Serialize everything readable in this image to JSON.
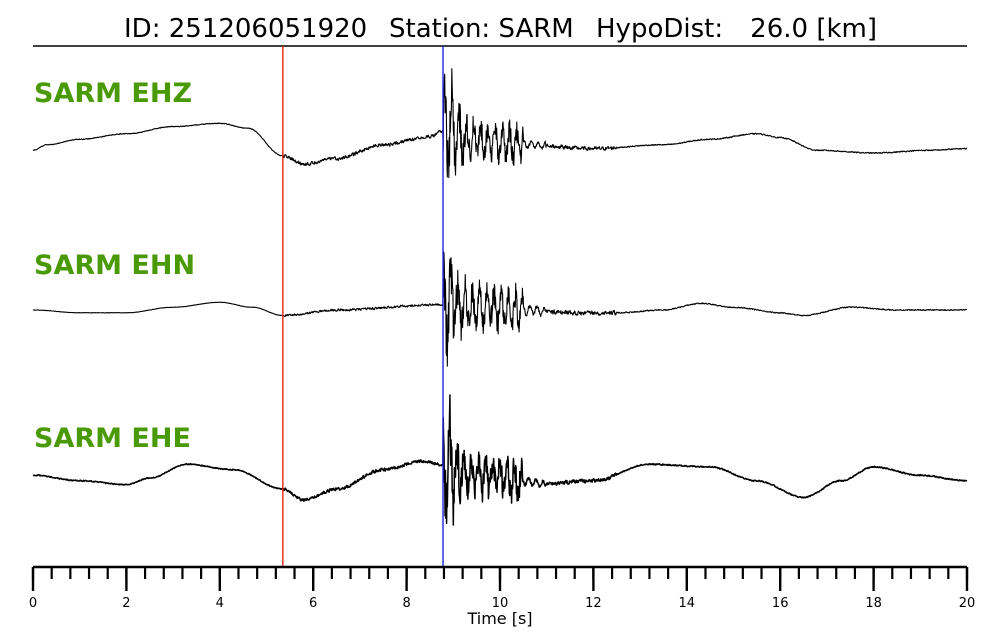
{
  "header": {
    "id_text": "ID: 251206051920",
    "station_text": "Station: SARM",
    "hypodist_label": "HypoDist:",
    "hypodist_value": "26.0 [km]"
  },
  "colors": {
    "trace": "#000000",
    "label": "#4a9a07",
    "p_pick": "#e8231c",
    "s_pick": "#1c2ad6",
    "axis": "#000000"
  },
  "chart_data": {
    "type": "line",
    "xlabel": "Time [s]",
    "xlim": [
      0,
      20
    ],
    "x_major_ticks": [
      0,
      2,
      4,
      6,
      8,
      10,
      12,
      14,
      16,
      18,
      20
    ],
    "x_tick_labels": [
      "0",
      "2",
      "4",
      "6",
      "8",
      "10",
      "12",
      "14",
      "16",
      "18",
      "20"
    ],
    "x_minor_step": 0.4,
    "picks": [
      {
        "phase": "P",
        "time": 5.35,
        "color": "#e8231c"
      },
      {
        "phase": "S",
        "time": 8.78,
        "color": "#1c2ad6"
      }
    ],
    "series": [
      {
        "name": "SARM EHZ",
        "envelope": [
          [
            0,
            -0.15
          ],
          [
            0.3,
            -0.05
          ],
          [
            1,
            0.05
          ],
          [
            2,
            0.15
          ],
          [
            3,
            0.28
          ],
          [
            4,
            0.34
          ],
          [
            4.6,
            0.25
          ],
          [
            5.35,
            -0.25
          ],
          [
            5.8,
            -0.4
          ],
          [
            6.5,
            -0.3
          ],
          [
            7.5,
            -0.05
          ],
          [
            8.5,
            0.1
          ],
          [
            8.78,
            0.2
          ],
          [
            9.4,
            0.05
          ],
          [
            10.5,
            -0.05
          ],
          [
            12,
            -0.12
          ],
          [
            13.5,
            -0.05
          ],
          [
            14.5,
            0.05
          ],
          [
            15.5,
            0.15
          ],
          [
            16,
            0.08
          ],
          [
            16.8,
            -0.15
          ],
          [
            18,
            -0.2
          ],
          [
            19.2,
            -0.15
          ],
          [
            20,
            -0.12
          ]
        ],
        "noise_windows": [
          {
            "start": 0,
            "end": 5.35,
            "amp": 0.02
          },
          {
            "start": 5.35,
            "end": 8.78,
            "amp": 0.09
          },
          {
            "start": 8.78,
            "end": 9.0,
            "amp": 1.2
          },
          {
            "start": 9.0,
            "end": 10.5,
            "amp": 0.45
          },
          {
            "start": 10.5,
            "end": 12.5,
            "amp": 0.1
          },
          {
            "start": 12.5,
            "end": 20,
            "amp": 0.03
          }
        ]
      },
      {
        "name": "SARM EHN",
        "envelope": [
          [
            0,
            0.0
          ],
          [
            1,
            -0.05
          ],
          [
            2,
            -0.05
          ],
          [
            3,
            0.05
          ],
          [
            4,
            0.14
          ],
          [
            4.7,
            0.05
          ],
          [
            5.35,
            -0.1
          ],
          [
            6.5,
            0.0
          ],
          [
            8.78,
            0.1
          ],
          [
            9.5,
            0.05
          ],
          [
            10.5,
            0.0
          ],
          [
            11.5,
            -0.05
          ],
          [
            12.5,
            -0.05
          ],
          [
            13.5,
            0.0
          ],
          [
            14.3,
            0.12
          ],
          [
            15,
            0.05
          ],
          [
            16,
            -0.05
          ],
          [
            16.5,
            -0.1
          ],
          [
            17.5,
            0.05
          ],
          [
            18.5,
            0.0
          ],
          [
            20,
            0.0
          ]
        ],
        "noise_windows": [
          {
            "start": 0,
            "end": 5.35,
            "amp": 0.01
          },
          {
            "start": 5.35,
            "end": 8.78,
            "amp": 0.06
          },
          {
            "start": 8.78,
            "end": 9.0,
            "amp": 1.3
          },
          {
            "start": 9.0,
            "end": 10.5,
            "amp": 0.5
          },
          {
            "start": 10.5,
            "end": 12.5,
            "amp": 0.12
          },
          {
            "start": 12.5,
            "end": 20,
            "amp": 0.03
          }
        ]
      },
      {
        "name": "SARM EHE",
        "envelope": [
          [
            0,
            0.05
          ],
          [
            1,
            -0.05
          ],
          [
            2,
            -0.12
          ],
          [
            2.5,
            0.0
          ],
          [
            3.3,
            0.25
          ],
          [
            4.3,
            0.15
          ],
          [
            5.35,
            -0.2
          ],
          [
            5.8,
            -0.4
          ],
          [
            6.5,
            -0.2
          ],
          [
            7.5,
            0.15
          ],
          [
            8.3,
            0.3
          ],
          [
            8.78,
            0.25
          ],
          [
            9.5,
            0.05
          ],
          [
            11,
            -0.1
          ],
          [
            12,
            -0.05
          ],
          [
            13.2,
            0.25
          ],
          [
            14.5,
            0.2
          ],
          [
            15.5,
            -0.05
          ],
          [
            16.5,
            -0.35
          ],
          [
            17.3,
            -0.05
          ],
          [
            18,
            0.2
          ],
          [
            19,
            0.05
          ],
          [
            20,
            -0.05
          ]
        ],
        "noise_windows": [
          {
            "start": 0,
            "end": 5.35,
            "amp": 0.03
          },
          {
            "start": 5.35,
            "end": 8.78,
            "amp": 0.08
          },
          {
            "start": 8.78,
            "end": 9.0,
            "amp": 1.3
          },
          {
            "start": 9.0,
            "end": 10.5,
            "amp": 0.5
          },
          {
            "start": 10.5,
            "end": 12.5,
            "amp": 0.1
          },
          {
            "start": 12.5,
            "end": 20,
            "amp": 0.035
          }
        ]
      }
    ]
  }
}
